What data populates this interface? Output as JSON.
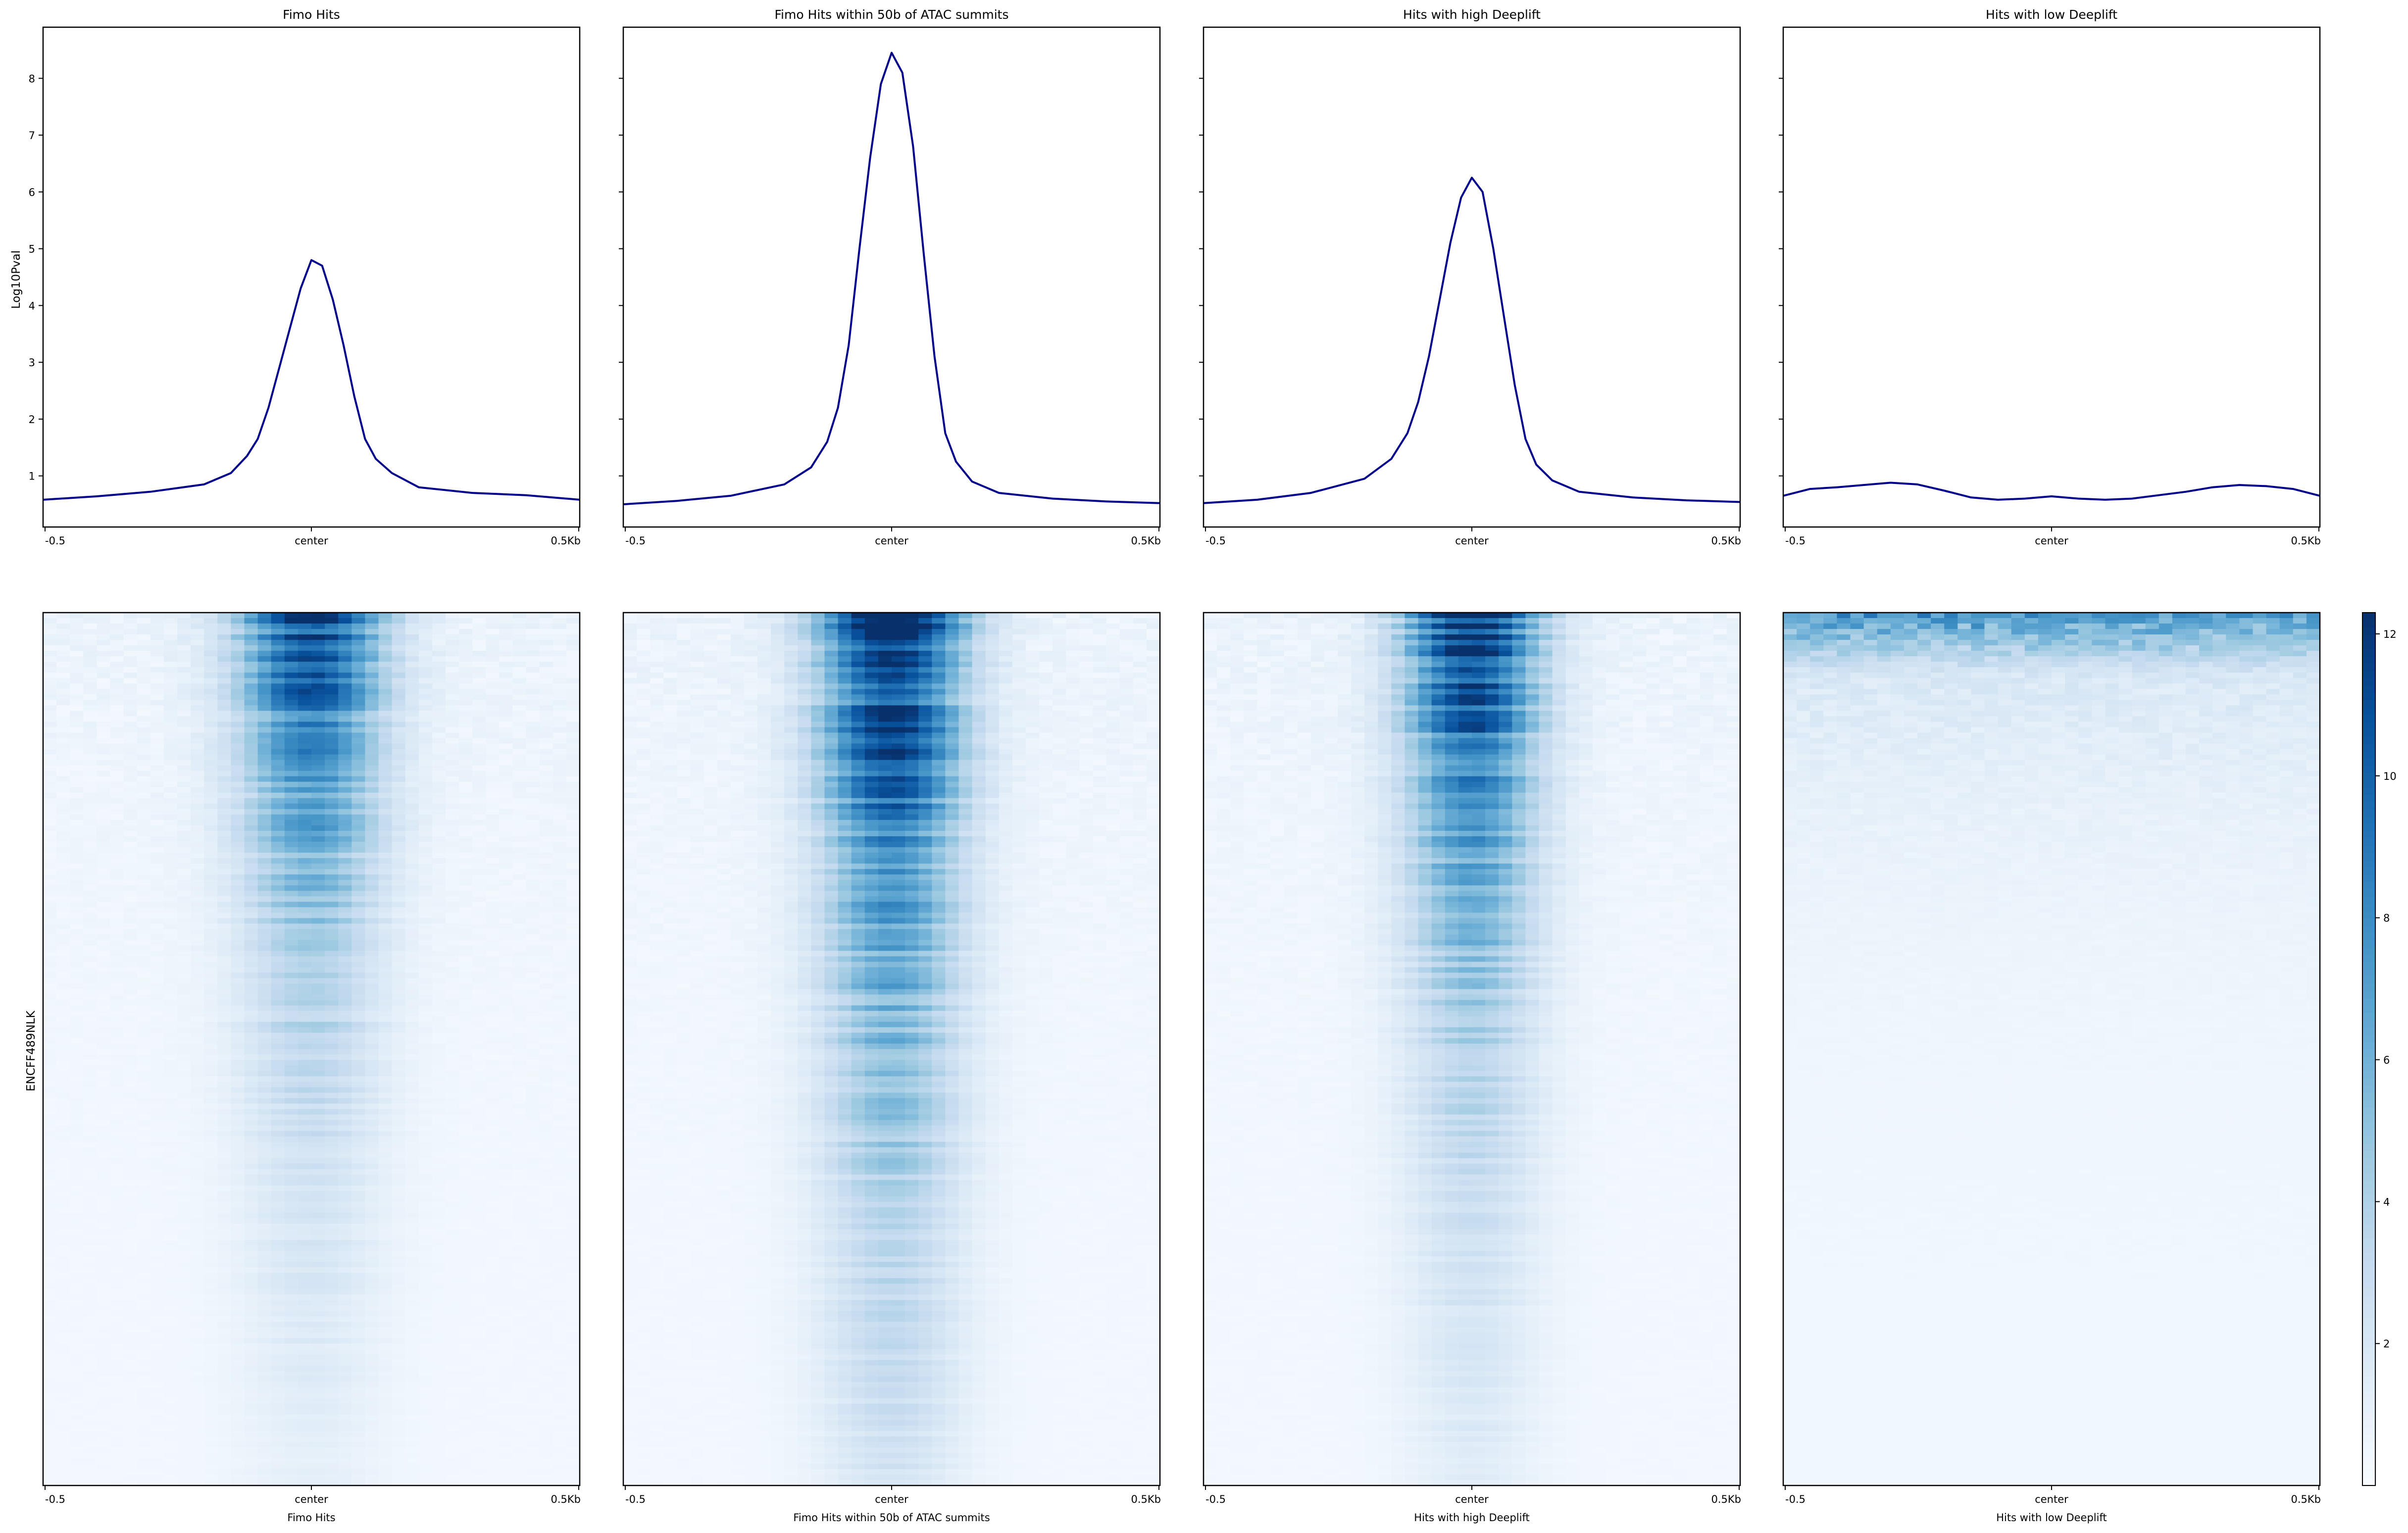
{
  "figure": {
    "row_label": "ENCFF489NLK",
    "profile_ylabel": "Log10Pval",
    "x_ticks": [
      "-0.5",
      "center",
      "0.5Kb"
    ]
  },
  "colors": {
    "line": "#00008B",
    "heat_low": "#f7fbff",
    "heat_high": "#08306b"
  },
  "chart_data": [
    {
      "type": "line",
      "title": "Fimo Hits",
      "xlabel": "",
      "ylabel": "Log10Pval",
      "x_range": [
        -0.5,
        0.5
      ],
      "ylim": [
        0.1,
        8.9
      ],
      "yticks": [
        1,
        2,
        3,
        4,
        5,
        6,
        7,
        8
      ],
      "x": [
        -0.5,
        -0.4,
        -0.3,
        -0.2,
        -0.15,
        -0.12,
        -0.1,
        -0.08,
        -0.06,
        -0.04,
        -0.02,
        0.0,
        0.02,
        0.04,
        0.06,
        0.08,
        0.1,
        0.12,
        0.15,
        0.2,
        0.3,
        0.4,
        0.5
      ],
      "values": [
        0.58,
        0.64,
        0.72,
        0.85,
        1.05,
        1.35,
        1.65,
        2.2,
        2.9,
        3.6,
        4.3,
        4.8,
        4.7,
        4.1,
        3.3,
        2.4,
        1.65,
        1.3,
        1.05,
        0.8,
        0.7,
        0.66,
        0.58
      ]
    },
    {
      "type": "line",
      "title": "Fimo Hits within 50b of ATAC summits",
      "xlabel": "",
      "ylabel": "",
      "x_range": [
        -0.5,
        0.5
      ],
      "ylim": [
        0.1,
        8.9
      ],
      "yticks": [
        1,
        2,
        3,
        4,
        5,
        6,
        7,
        8
      ],
      "x": [
        -0.5,
        -0.4,
        -0.3,
        -0.2,
        -0.15,
        -0.12,
        -0.1,
        -0.08,
        -0.06,
        -0.04,
        -0.02,
        0.0,
        0.02,
        0.04,
        0.06,
        0.08,
        0.1,
        0.12,
        0.15,
        0.2,
        0.3,
        0.4,
        0.5
      ],
      "values": [
        0.5,
        0.56,
        0.65,
        0.85,
        1.15,
        1.6,
        2.2,
        3.3,
        5.0,
        6.6,
        7.9,
        8.45,
        8.1,
        6.8,
        4.9,
        3.1,
        1.75,
        1.25,
        0.9,
        0.7,
        0.6,
        0.55,
        0.52
      ]
    },
    {
      "type": "line",
      "title": "Hits with high Deeplift",
      "xlabel": "",
      "ylabel": "",
      "x_range": [
        -0.5,
        0.5
      ],
      "ylim": [
        0.1,
        8.9
      ],
      "yticks": [
        1,
        2,
        3,
        4,
        5,
        6,
        7,
        8
      ],
      "x": [
        -0.5,
        -0.4,
        -0.3,
        -0.2,
        -0.15,
        -0.12,
        -0.1,
        -0.08,
        -0.06,
        -0.04,
        -0.02,
        0.0,
        0.02,
        0.04,
        0.06,
        0.08,
        0.1,
        0.12,
        0.15,
        0.2,
        0.3,
        0.4,
        0.5
      ],
      "values": [
        0.52,
        0.58,
        0.7,
        0.95,
        1.3,
        1.75,
        2.3,
        3.1,
        4.1,
        5.1,
        5.9,
        6.25,
        6.0,
        5.0,
        3.8,
        2.6,
        1.65,
        1.2,
        0.92,
        0.72,
        0.62,
        0.57,
        0.54
      ]
    },
    {
      "type": "line",
      "title": "Hits with low Deeplift",
      "xlabel": "",
      "ylabel": "",
      "x_range": [
        -0.5,
        0.5
      ],
      "ylim": [
        0.1,
        8.9
      ],
      "yticks": [
        1,
        2,
        3,
        4,
        5,
        6,
        7,
        8
      ],
      "x": [
        -0.5,
        -0.45,
        -0.4,
        -0.3,
        -0.25,
        -0.2,
        -0.15,
        -0.1,
        -0.05,
        0.0,
        0.05,
        0.1,
        0.15,
        0.2,
        0.25,
        0.3,
        0.35,
        0.4,
        0.45,
        0.5
      ],
      "values": [
        0.65,
        0.77,
        0.8,
        0.88,
        0.85,
        0.74,
        0.62,
        0.58,
        0.6,
        0.64,
        0.6,
        0.58,
        0.6,
        0.66,
        0.72,
        0.8,
        0.84,
        0.82,
        0.77,
        0.65
      ]
    },
    {
      "type": "heatmap",
      "title": "",
      "xlabel": "Fimo Hits",
      "x_range": [
        -0.5,
        0.5
      ],
      "center_strength": 11,
      "center_width": 0.16,
      "decay": 2.6
    },
    {
      "type": "heatmap",
      "title": "",
      "xlabel": "Fimo Hits within 50b of ATAC summits",
      "x_range": [
        -0.5,
        0.5
      ],
      "center_strength": 13,
      "center_width": 0.16,
      "decay": 1.9
    },
    {
      "type": "heatmap",
      "title": "",
      "xlabel": "Hits with high Deeplift",
      "x_range": [
        -0.5,
        0.5
      ],
      "center_strength": 12,
      "center_width": 0.15,
      "decay": 2.4
    },
    {
      "type": "heatmap",
      "title": "",
      "xlabel": "Hits with low Deeplift",
      "x_range": [
        -0.5,
        0.5
      ],
      "center_strength": 0,
      "center_width": 0.5,
      "decay": 8
    }
  ],
  "colorbar": {
    "range": [
      0,
      12.3
    ],
    "ticks": [
      2,
      4,
      6,
      8,
      10,
      12
    ]
  }
}
